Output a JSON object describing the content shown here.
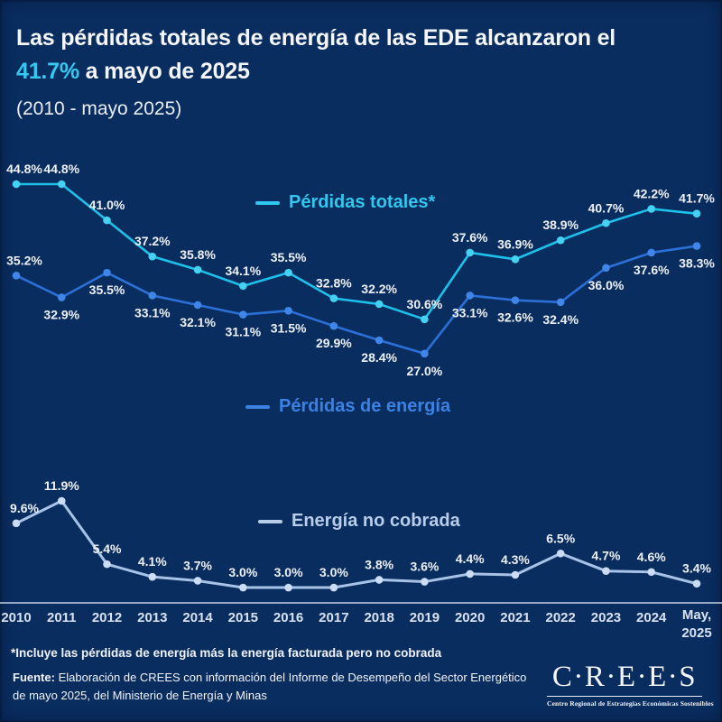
{
  "header": {
    "title_line1": "Las pérdidas totales de energía de las EDE alcanzaron el",
    "title_accent": "41.7%",
    "title_line2_rest": " a mayo de 2025",
    "subtitle": "(2010 - mayo 2025)"
  },
  "chart_data": {
    "type": "line",
    "title": "Las pérdidas totales de energía de las EDE alcanzaron el 41.7% a mayo de 2025",
    "subtitle": "(2010 - mayo 2025)",
    "grid": false,
    "y_axis_visible": false,
    "legend_position": "floating-inline",
    "value_suffix": "%",
    "categories": [
      "2010",
      "2011",
      "2012",
      "2013",
      "2014",
      "2015",
      "2016",
      "2017",
      "2018",
      "2019",
      "2020",
      "2021",
      "2022",
      "2023",
      "2024",
      "May, 2025"
    ],
    "series": [
      {
        "name": "Pérdidas totales*",
        "color": "#1ec1e9",
        "point_color": "#45d2f2",
        "legend_color": "#30c8ee",
        "label_side": "above",
        "values": [
          44.8,
          44.8,
          41.0,
          37.2,
          35.8,
          34.1,
          35.5,
          32.8,
          32.2,
          30.6,
          37.6,
          36.9,
          38.9,
          40.7,
          42.2,
          41.7
        ]
      },
      {
        "name": "Pérdidas de energía",
        "color": "#2b70d6",
        "point_color": "#3f86e8",
        "legend_color": "#3b82e2",
        "label_side": "below",
        "label_overrides": {
          "0": "above"
        },
        "values": [
          35.2,
          32.9,
          35.5,
          33.1,
          32.1,
          31.1,
          31.5,
          29.9,
          28.4,
          27.0,
          33.1,
          32.6,
          32.4,
          36.0,
          37.6,
          38.3
        ]
      },
      {
        "name": "Energía no cobrada",
        "color": "#a7c4e8",
        "point_color": "#cbddf4",
        "legend_color": "#b7cdea",
        "label_side": "above",
        "values": [
          9.6,
          11.9,
          5.4,
          4.1,
          3.7,
          3.0,
          3.0,
          3.0,
          3.8,
          3.6,
          4.4,
          4.3,
          6.5,
          4.7,
          4.6,
          3.4
        ]
      }
    ]
  },
  "footer": {
    "footnote": "*Incluye las pérdidas de energía más la energía facturada pero no cobrada",
    "source_label": "Fuente:",
    "source_line1": " Elaboración de CREES con información del Informe de Desempeño del Sector Energético",
    "source_line2": "de mayo 2025, del Ministerio de Energía y Minas"
  },
  "logo": {
    "wordmark": "C·R·E·E·S",
    "tagline": "Centro Regional de Estrategias Económicas Sostenibles"
  },
  "colors": {
    "background": "#0a2d60",
    "accent_cyan": "#35c9ef",
    "series_blue": "#2b70d6",
    "series_pale": "#a7c4e8",
    "value_label_text": "#edf1f8",
    "axis_text": "#d8e2f1",
    "axis_line": "#c3d1e6"
  }
}
